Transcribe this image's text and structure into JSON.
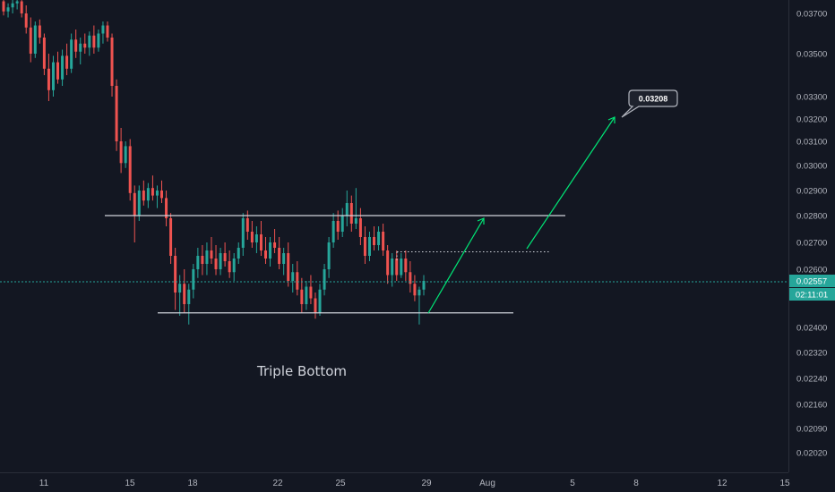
{
  "colors": {
    "background": "#131722",
    "up": "#26a69a",
    "down": "#ef5350",
    "axis_text": "#b2b5be",
    "drawing": "#d1d4dc",
    "arrow": "#00e676",
    "price_line": "#26a69a"
  },
  "annotations": {
    "pattern_label": "Triple Bottom",
    "target_label": "0.03208"
  },
  "chart_data": {
    "type": "candlestick",
    "title": "",
    "y_axis": {
      "side": "right",
      "tick_labels": [
        "0.03700",
        "0.03500",
        "0.03300",
        "0.03200",
        "0.03100",
        "0.03000",
        "0.02900",
        "0.02800",
        "0.02700",
        "0.02600",
        "0.02400",
        "0.02320",
        "0.02240",
        "0.02160",
        "0.02090",
        "0.02020"
      ],
      "current_price": "0.02557",
      "countdown": "02:11:01"
    },
    "x_axis": {
      "tick_labels": [
        "11",
        "15",
        "18",
        "22",
        "25",
        "29",
        "Aug",
        "5",
        "8",
        "12",
        "15"
      ]
    },
    "grid": false,
    "levels": {
      "resistance": 0.028,
      "support": 0.0245,
      "breakout": 0.02665,
      "target": 0.03208
    },
    "candles": [
      [
        0.0376,
        0.0378,
        0.0369,
        0.0371
      ],
      [
        0.0371,
        0.0375,
        0.0368,
        0.0373
      ],
      [
        0.0373,
        0.0377,
        0.037,
        0.0375
      ],
      [
        0.0375,
        0.0379,
        0.0372,
        0.0376
      ],
      [
        0.0376,
        0.038,
        0.0368,
        0.037
      ],
      [
        0.037,
        0.0374,
        0.036,
        0.0363
      ],
      [
        0.0363,
        0.0368,
        0.0346,
        0.035
      ],
      [
        0.035,
        0.0366,
        0.0348,
        0.0364
      ],
      [
        0.0364,
        0.0367,
        0.0355,
        0.0358
      ],
      [
        0.0358,
        0.036,
        0.034,
        0.0343
      ],
      [
        0.0343,
        0.035,
        0.0328,
        0.0333
      ],
      [
        0.0333,
        0.0349,
        0.033,
        0.0346
      ],
      [
        0.0346,
        0.0351,
        0.0336,
        0.0338
      ],
      [
        0.0338,
        0.0352,
        0.0335,
        0.0349
      ],
      [
        0.0349,
        0.0355,
        0.034,
        0.0343
      ],
      [
        0.0343,
        0.036,
        0.0341,
        0.0357
      ],
      [
        0.0357,
        0.0362,
        0.0348,
        0.0351
      ],
      [
        0.0351,
        0.0358,
        0.0345,
        0.0355
      ],
      [
        0.0355,
        0.036,
        0.035,
        0.0353
      ],
      [
        0.0353,
        0.0361,
        0.0349,
        0.0359
      ],
      [
        0.0359,
        0.0364,
        0.035,
        0.0353
      ],
      [
        0.0353,
        0.0362,
        0.0351,
        0.036
      ],
      [
        0.036,
        0.0366,
        0.0355,
        0.0364
      ],
      [
        0.0364,
        0.0366,
        0.0356,
        0.0358
      ],
      [
        0.0358,
        0.036,
        0.033,
        0.0335
      ],
      [
        0.0335,
        0.0338,
        0.0306,
        0.031
      ],
      [
        0.031,
        0.0316,
        0.0297,
        0.0301
      ],
      [
        0.0301,
        0.031,
        0.0299,
        0.0308
      ],
      [
        0.0308,
        0.0311,
        0.0286,
        0.0289
      ],
      [
        0.0289,
        0.0292,
        0.027,
        0.028
      ],
      [
        0.028,
        0.0292,
        0.0278,
        0.029
      ],
      [
        0.029,
        0.0294,
        0.0284,
        0.0286
      ],
      [
        0.0286,
        0.0293,
        0.0283,
        0.0291
      ],
      [
        0.0291,
        0.0296,
        0.0286,
        0.0288
      ],
      [
        0.0288,
        0.0292,
        0.0283,
        0.029
      ],
      [
        0.029,
        0.0294,
        0.0285,
        0.0287
      ],
      [
        0.0287,
        0.029,
        0.0276,
        0.0279
      ],
      [
        0.0279,
        0.0281,
        0.0262,
        0.0265
      ],
      [
        0.0265,
        0.0268,
        0.0246,
        0.0252
      ],
      [
        0.0252,
        0.0258,
        0.0244,
        0.0255
      ],
      [
        0.0255,
        0.026,
        0.0245,
        0.0248
      ],
      [
        0.0248,
        0.0255,
        0.0241,
        0.0253
      ],
      [
        0.0253,
        0.0262,
        0.025,
        0.026
      ],
      [
        0.026,
        0.0268,
        0.0257,
        0.0265
      ],
      [
        0.0265,
        0.0269,
        0.0258,
        0.0262
      ],
      [
        0.0262,
        0.027,
        0.0258,
        0.0267
      ],
      [
        0.0267,
        0.0272,
        0.0262,
        0.0264
      ],
      [
        0.0264,
        0.0269,
        0.0258,
        0.026
      ],
      [
        0.026,
        0.0268,
        0.0258,
        0.0266
      ],
      [
        0.0266,
        0.027,
        0.0261,
        0.0263
      ],
      [
        0.0263,
        0.0267,
        0.0257,
        0.0259
      ],
      [
        0.0259,
        0.0266,
        0.0256,
        0.0264
      ],
      [
        0.0264,
        0.027,
        0.0262,
        0.0268
      ],
      [
        0.0268,
        0.0281,
        0.0265,
        0.0279
      ],
      [
        0.0279,
        0.0282,
        0.0271,
        0.0274
      ],
      [
        0.0274,
        0.0278,
        0.0268,
        0.027
      ],
      [
        0.027,
        0.0276,
        0.0266,
        0.0273
      ],
      [
        0.0273,
        0.0278,
        0.0265,
        0.0267
      ],
      [
        0.0267,
        0.0272,
        0.0262,
        0.0264
      ],
      [
        0.0264,
        0.0272,
        0.0261,
        0.027
      ],
      [
        0.027,
        0.0275,
        0.0266,
        0.0268
      ],
      [
        0.0268,
        0.0272,
        0.026,
        0.0262
      ],
      [
        0.0262,
        0.0268,
        0.0258,
        0.0266
      ],
      [
        0.0266,
        0.027,
        0.0254,
        0.0256
      ],
      [
        0.0256,
        0.0262,
        0.0252,
        0.0259
      ],
      [
        0.0259,
        0.0263,
        0.0251,
        0.0253
      ],
      [
        0.0253,
        0.0257,
        0.0245,
        0.0248
      ],
      [
        0.0248,
        0.0256,
        0.0246,
        0.0254
      ],
      [
        0.0254,
        0.0258,
        0.0248,
        0.025
      ],
      [
        0.025,
        0.0252,
        0.0243,
        0.0245
      ],
      [
        0.0245,
        0.0255,
        0.0244,
        0.0253
      ],
      [
        0.0253,
        0.0262,
        0.0251,
        0.026
      ],
      [
        0.026,
        0.0272,
        0.0257,
        0.027
      ],
      [
        0.027,
        0.0281,
        0.0268,
        0.0278
      ],
      [
        0.0278,
        0.0282,
        0.0271,
        0.0274
      ],
      [
        0.0274,
        0.0283,
        0.0272,
        0.028
      ],
      [
        0.028,
        0.029,
        0.0276,
        0.0285
      ],
      [
        0.0285,
        0.0288,
        0.0274,
        0.0277
      ],
      [
        0.0277,
        0.0291,
        0.0275,
        0.0279
      ],
      [
        0.0279,
        0.0283,
        0.0269,
        0.0272
      ],
      [
        0.0272,
        0.0276,
        0.0262,
        0.0265
      ],
      [
        0.0265,
        0.0274,
        0.0263,
        0.0272
      ],
      [
        0.0272,
        0.0276,
        0.0267,
        0.0269
      ],
      [
        0.0269,
        0.0276,
        0.0267,
        0.0274
      ],
      [
        0.0274,
        0.0277,
        0.0265,
        0.0267
      ],
      [
        0.0267,
        0.0269,
        0.0255,
        0.0258
      ],
      [
        0.0258,
        0.0266,
        0.0254,
        0.0264
      ],
      [
        0.0264,
        0.0267,
        0.0256,
        0.0258
      ],
      [
        0.0258,
        0.0266,
        0.0257,
        0.0264
      ],
      [
        0.0264,
        0.0267,
        0.0256,
        0.0259
      ],
      [
        0.0259,
        0.0263,
        0.0252,
        0.0255
      ],
      [
        0.0255,
        0.0258,
        0.0249,
        0.0251
      ],
      [
        0.0251,
        0.0254,
        0.0241,
        0.0253
      ],
      [
        0.0253,
        0.0258,
        0.0251,
        0.0256
      ]
    ]
  }
}
